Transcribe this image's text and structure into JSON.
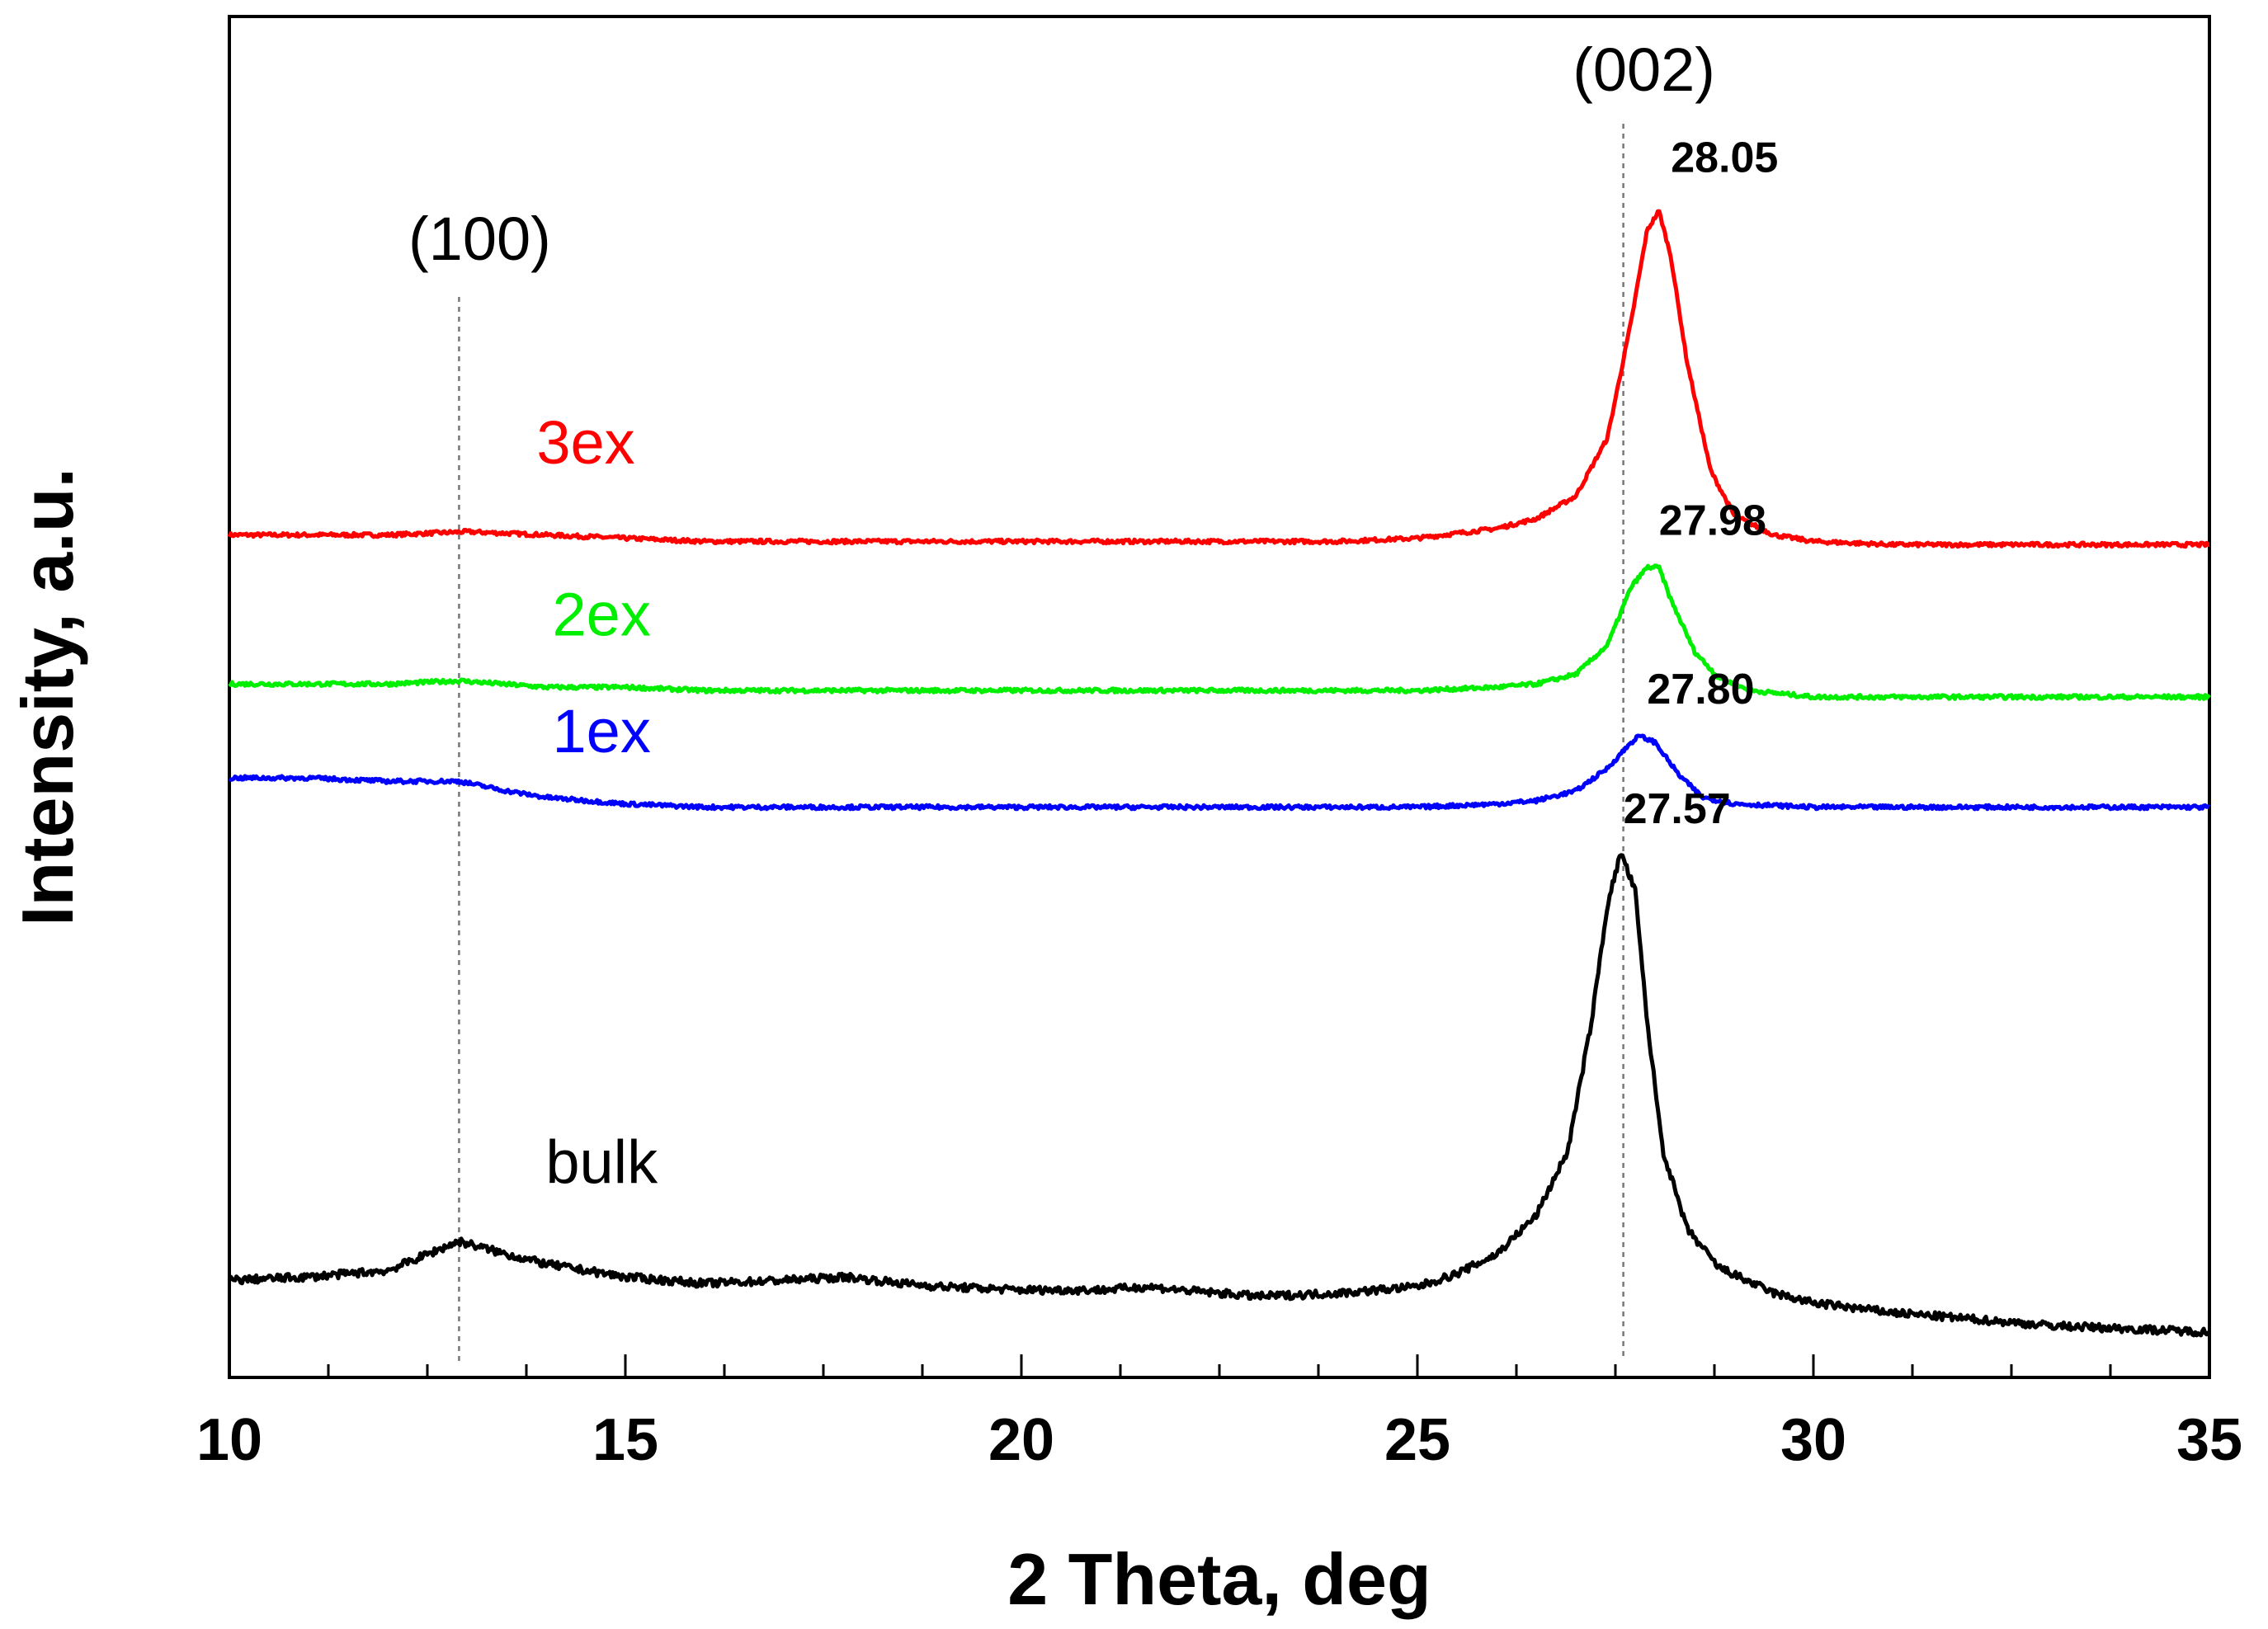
{
  "chart_data": {
    "type": "line",
    "xlabel": "2 Theta, deg",
    "ylabel": "Intensity, a.u.",
    "xlim": [
      10,
      35
    ],
    "x_ticks": [
      "10",
      "15",
      "20",
      "25",
      "30",
      "35"
    ],
    "minor_tick_step": 1.25,
    "y_ticks": [],
    "reference_lines": [
      {
        "x": 12.9,
        "label": "(100)"
      },
      {
        "x": 27.6,
        "label": "(002)"
      }
    ],
    "series": [
      {
        "name": "3ex",
        "color": "#ff0000",
        "peak_label": "28.05",
        "points": [
          [
            10,
            0.05
          ],
          [
            11,
            0.05
          ],
          [
            12,
            0.05
          ],
          [
            13,
            0.055
          ],
          [
            14,
            0.05
          ],
          [
            15,
            0.045
          ],
          [
            16,
            0.04
          ],
          [
            17,
            0.04
          ],
          [
            18,
            0.04
          ],
          [
            19,
            0.04
          ],
          [
            20,
            0.04
          ],
          [
            21,
            0.04
          ],
          [
            22,
            0.04
          ],
          [
            23,
            0.04
          ],
          [
            24,
            0.04
          ],
          [
            25,
            0.045
          ],
          [
            26,
            0.06
          ],
          [
            26.5,
            0.075
          ],
          [
            27,
            0.11
          ],
          [
            27.4,
            0.2
          ],
          [
            27.7,
            0.38
          ],
          [
            27.9,
            0.52
          ],
          [
            28.05,
            0.55
          ],
          [
            28.2,
            0.48
          ],
          [
            28.4,
            0.32
          ],
          [
            28.7,
            0.15
          ],
          [
            29,
            0.08
          ],
          [
            29.5,
            0.05
          ],
          [
            30,
            0.04
          ],
          [
            31,
            0.035
          ],
          [
            32,
            0.035
          ],
          [
            33,
            0.035
          ],
          [
            34,
            0.035
          ],
          [
            35,
            0.035
          ]
        ]
      },
      {
        "name": "2ex",
        "color": "#00ee00",
        "peak_label": "27.98",
        "points": [
          [
            10,
            -0.18
          ],
          [
            11,
            -0.18
          ],
          [
            12,
            -0.18
          ],
          [
            12.9,
            -0.175
          ],
          [
            14,
            -0.185
          ],
          [
            15,
            -0.185
          ],
          [
            16,
            -0.19
          ],
          [
            17,
            -0.19
          ],
          [
            18,
            -0.19
          ],
          [
            19,
            -0.19
          ],
          [
            20,
            -0.19
          ],
          [
            21,
            -0.19
          ],
          [
            22,
            -0.19
          ],
          [
            23,
            -0.19
          ],
          [
            24,
            -0.19
          ],
          [
            25,
            -0.19
          ],
          [
            26,
            -0.185
          ],
          [
            26.5,
            -0.18
          ],
          [
            27,
            -0.165
          ],
          [
            27.4,
            -0.12
          ],
          [
            27.7,
            -0.03
          ],
          [
            27.9,
            0.0
          ],
          [
            28.05,
            0.0
          ],
          [
            28.2,
            -0.05
          ],
          [
            28.5,
            -0.13
          ],
          [
            28.8,
            -0.17
          ],
          [
            29.2,
            -0.19
          ],
          [
            30,
            -0.2
          ],
          [
            31,
            -0.2
          ],
          [
            32,
            -0.2
          ],
          [
            33,
            -0.2
          ],
          [
            34,
            -0.2
          ],
          [
            35,
            -0.2
          ]
        ]
      },
      {
        "name": "1ex",
        "color": "#0000ff",
        "peak_label": "27.80",
        "points": [
          [
            10,
            -0.325
          ],
          [
            11,
            -0.325
          ],
          [
            12,
            -0.33
          ],
          [
            12.9,
            -0.33
          ],
          [
            13.5,
            -0.345
          ],
          [
            14,
            -0.355
          ],
          [
            15,
            -0.365
          ],
          [
            16,
            -0.37
          ],
          [
            17,
            -0.37
          ],
          [
            18,
            -0.37
          ],
          [
            19,
            -0.37
          ],
          [
            20,
            -0.37
          ],
          [
            21,
            -0.37
          ],
          [
            22,
            -0.37
          ],
          [
            23,
            -0.37
          ],
          [
            24,
            -0.37
          ],
          [
            25,
            -0.37
          ],
          [
            26,
            -0.365
          ],
          [
            26.5,
            -0.36
          ],
          [
            27,
            -0.345
          ],
          [
            27.4,
            -0.31
          ],
          [
            27.7,
            -0.27
          ],
          [
            27.8,
            -0.26
          ],
          [
            28,
            -0.27
          ],
          [
            28.3,
            -0.32
          ],
          [
            28.6,
            -0.355
          ],
          [
            29,
            -0.365
          ],
          [
            30,
            -0.37
          ],
          [
            31,
            -0.37
          ],
          [
            32,
            -0.37
          ],
          [
            33,
            -0.37
          ],
          [
            34,
            -0.37
          ],
          [
            35,
            -0.37
          ]
        ]
      },
      {
        "name": "bulk",
        "color": "#000000",
        "peak_label": "27.57",
        "points": [
          [
            10,
            -1.1
          ],
          [
            11,
            -1.095
          ],
          [
            12,
            -1.085
          ],
          [
            12.5,
            -1.06
          ],
          [
            12.9,
            -1.04
          ],
          [
            13.5,
            -1.06
          ],
          [
            14,
            -1.075
          ],
          [
            15,
            -1.095
          ],
          [
            16,
            -1.105
          ],
          [
            17,
            -1.1
          ],
          [
            17.8,
            -1.095
          ],
          [
            18.5,
            -1.105
          ],
          [
            19,
            -1.11
          ],
          [
            20,
            -1.115
          ],
          [
            21,
            -1.115
          ],
          [
            21.6,
            -1.11
          ],
          [
            22,
            -1.115
          ],
          [
            23,
            -1.125
          ],
          [
            24,
            -1.12
          ],
          [
            25,
            -1.11
          ],
          [
            25.5,
            -1.09
          ],
          [
            26,
            -1.06
          ],
          [
            26.5,
            -1.0
          ],
          [
            26.9,
            -0.9
          ],
          [
            27.2,
            -0.7
          ],
          [
            27.4,
            -0.52
          ],
          [
            27.57,
            -0.44
          ],
          [
            27.75,
            -0.5
          ],
          [
            27.9,
            -0.7
          ],
          [
            28.1,
            -0.9
          ],
          [
            28.4,
            -1.02
          ],
          [
            28.8,
            -1.08
          ],
          [
            29.5,
            -1.12
          ],
          [
            30,
            -1.135
          ],
          [
            31,
            -1.15
          ],
          [
            32,
            -1.16
          ],
          [
            33,
            -1.17
          ],
          [
            34,
            -1.175
          ],
          [
            35,
            -1.18
          ]
        ]
      }
    ]
  }
}
